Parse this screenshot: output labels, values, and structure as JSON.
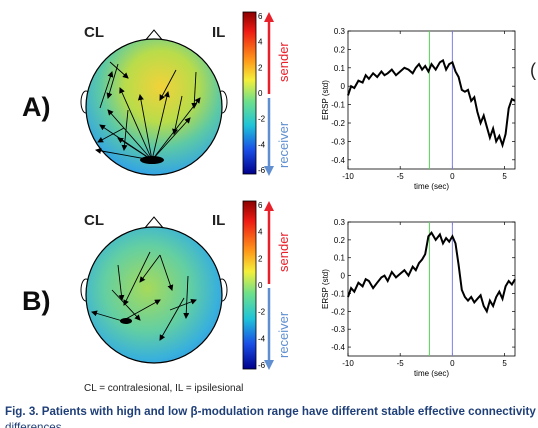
{
  "panels": [
    {
      "letter": "A)",
      "left_label": "CL",
      "right_label": "IL"
    },
    {
      "letter": "B)",
      "left_label": "CL",
      "right_label": "IL"
    }
  ],
  "colorbar": {
    "ticks": [
      "6",
      "4",
      "2",
      "0",
      "-2",
      "-4",
      "-6"
    ],
    "sender_label": "sender",
    "receiver_label": "receiver",
    "sender_color": "#e8202a",
    "receiver_color": "#5f8fd0"
  },
  "chart_data": [
    {
      "type": "line",
      "xlabel": "time (sec)",
      "ylabel": "ERSP (std)",
      "xlim": [
        -10,
        6
      ],
      "ylim": [
        -0.45,
        0.3
      ],
      "xticks": [
        "-10",
        "-5",
        "0",
        "5"
      ],
      "yticks": [
        "0.3",
        "0.2",
        "0.1",
        "0",
        "-0.1",
        "-0.2",
        "-0.3",
        "-0.4"
      ],
      "vlines": [
        {
          "x": -2.2,
          "color": "#5bd05b"
        },
        {
          "x": 0,
          "color": "#7f7fe8"
        }
      ],
      "x": [
        -10,
        -9.7,
        -9.4,
        -9.0,
        -8.6,
        -8.3,
        -8.0,
        -7.6,
        -7.2,
        -6.8,
        -6.5,
        -6.2,
        -5.8,
        -5.4,
        -5.0,
        -4.6,
        -4.2,
        -3.8,
        -3.5,
        -3.2,
        -2.9,
        -2.6,
        -2.3,
        -2.0,
        -1.6,
        -1.2,
        -0.9,
        -0.6,
        -0.3,
        0.0,
        0.3,
        0.6,
        0.9,
        1.2,
        1.5,
        1.8,
        2.1,
        2.4,
        2.7,
        3.0,
        3.3,
        3.6,
        3.9,
        4.2,
        4.5,
        4.8,
        5.1,
        5.4,
        5.7,
        6.0
      ],
      "series": [
        {
          "values": [
            -0.05,
            0.0,
            -0.01,
            0.03,
            0.02,
            0.06,
            0.04,
            0.07,
            0.05,
            0.08,
            0.06,
            0.07,
            0.09,
            0.06,
            0.08,
            0.1,
            0.09,
            0.07,
            0.1,
            0.12,
            0.09,
            0.11,
            0.08,
            0.12,
            0.09,
            0.13,
            0.14,
            0.09,
            0.12,
            0.13,
            0.08,
            0.05,
            -0.02,
            -0.03,
            -0.02,
            -0.08,
            -0.06,
            -0.14,
            -0.2,
            -0.16,
            -0.22,
            -0.28,
            -0.23,
            -0.3,
            -0.27,
            -0.32,
            -0.26,
            -0.12,
            -0.07,
            -0.08
          ]
        }
      ]
    },
    {
      "type": "line",
      "xlabel": "time (sec)",
      "ylabel": "ERSP (std)",
      "xlim": [
        -10,
        6
      ],
      "ylim": [
        -0.45,
        0.3
      ],
      "xticks": [
        "-10",
        "-5",
        "0",
        "5"
      ],
      "yticks": [
        "0.3",
        "0.2",
        "0.1",
        "0",
        "-0.1",
        "-0.2",
        "-0.3",
        "-0.4"
      ],
      "vlines": [
        {
          "x": -2.2,
          "color": "#5bd05b"
        },
        {
          "x": 0,
          "color": "#7f7fe8"
        }
      ],
      "x": [
        -10,
        -9.7,
        -9.4,
        -9.0,
        -8.6,
        -8.3,
        -8.0,
        -7.6,
        -7.2,
        -6.8,
        -6.5,
        -6.2,
        -5.8,
        -5.4,
        -5.0,
        -4.6,
        -4.2,
        -3.8,
        -3.5,
        -3.2,
        -2.9,
        -2.6,
        -2.3,
        -2.0,
        -1.6,
        -1.2,
        -0.9,
        -0.6,
        -0.3,
        0.0,
        0.3,
        0.6,
        0.9,
        1.2,
        1.5,
        1.8,
        2.1,
        2.4,
        2.7,
        3.0,
        3.3,
        3.6,
        3.9,
        4.2,
        4.5,
        4.8,
        5.1,
        5.4,
        5.7,
        6.0
      ],
      "series": [
        {
          "values": [
            -0.12,
            -0.07,
            -0.09,
            -0.04,
            -0.06,
            -0.02,
            -0.03,
            -0.07,
            -0.04,
            -0.01,
            0.0,
            -0.03,
            0.02,
            -0.01,
            0.01,
            0.03,
            0.0,
            0.05,
            0.03,
            0.07,
            0.09,
            0.12,
            0.22,
            0.24,
            0.2,
            0.23,
            0.18,
            0.21,
            0.19,
            0.22,
            0.18,
            0.06,
            -0.08,
            -0.12,
            -0.14,
            -0.12,
            -0.15,
            -0.13,
            -0.11,
            -0.17,
            -0.2,
            -0.14,
            -0.17,
            -0.12,
            -0.09,
            -0.13,
            -0.06,
            -0.03,
            -0.05,
            -0.02
          ]
        }
      ]
    }
  ],
  "footnote": "CL = contralesional, IL = ipsilesional",
  "caption_line1": "Fig. 3. Patients with high and low β-modulation range have different stable effective connectivity",
  "caption_line2": "differences ..."
}
